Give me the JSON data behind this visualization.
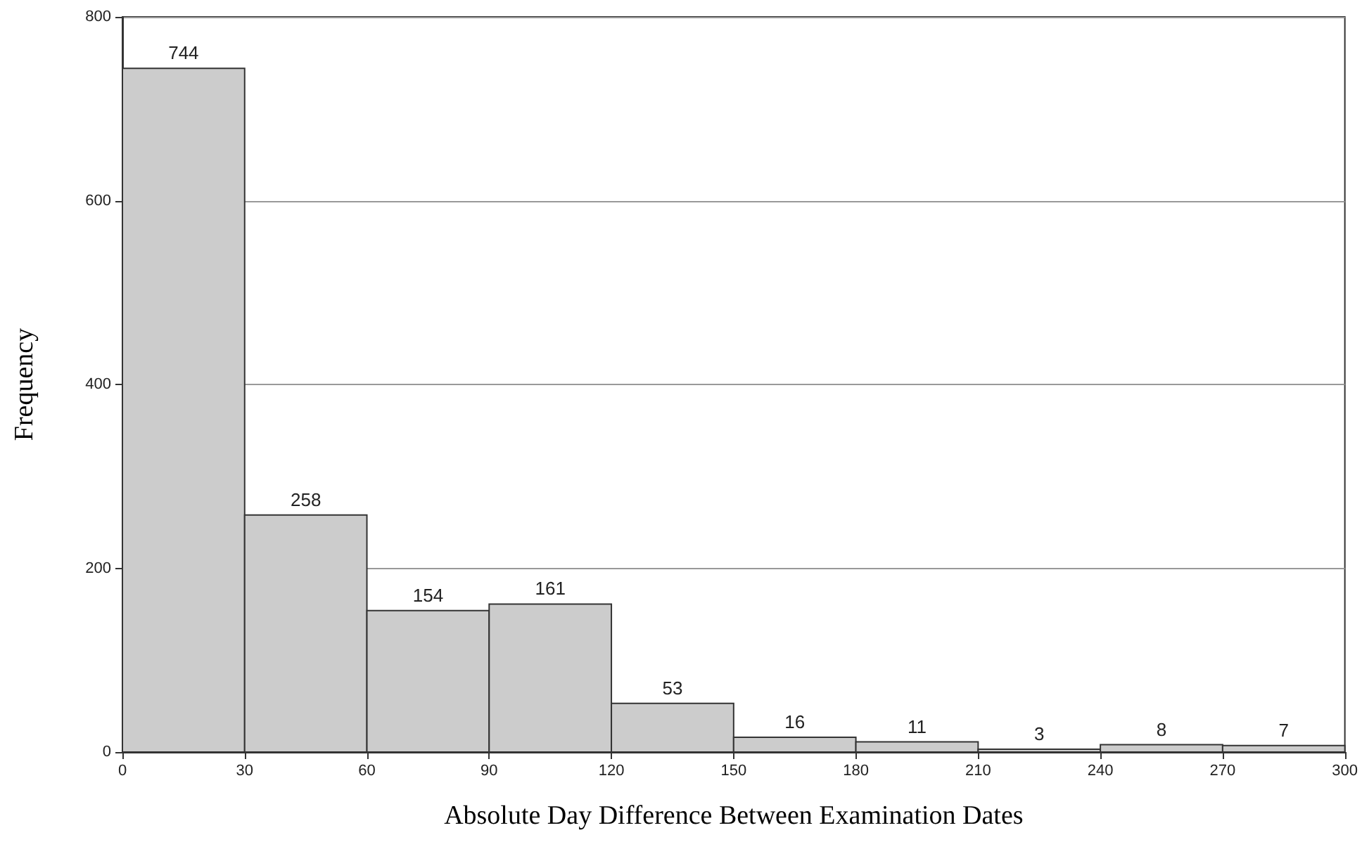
{
  "chart_data": {
    "type": "histogram",
    "xlabel": "Absolute Day Difference Between Examination Dates",
    "ylabel": "Frequency",
    "bins": [
      0,
      30,
      60,
      90,
      120,
      150,
      180,
      210,
      240,
      270,
      300
    ],
    "values": [
      744,
      258,
      154,
      161,
      53,
      16,
      11,
      3,
      8,
      7
    ],
    "color": "#cccccc",
    "data_labels": true,
    "xlim": [
      0,
      300
    ],
    "xticks": [
      0,
      30,
      60,
      90,
      120,
      150,
      180,
      210,
      240,
      270,
      300
    ],
    "ylim": [
      0,
      800
    ],
    "yticks": [
      0,
      200,
      400,
      600,
      800
    ],
    "grid": "y"
  }
}
